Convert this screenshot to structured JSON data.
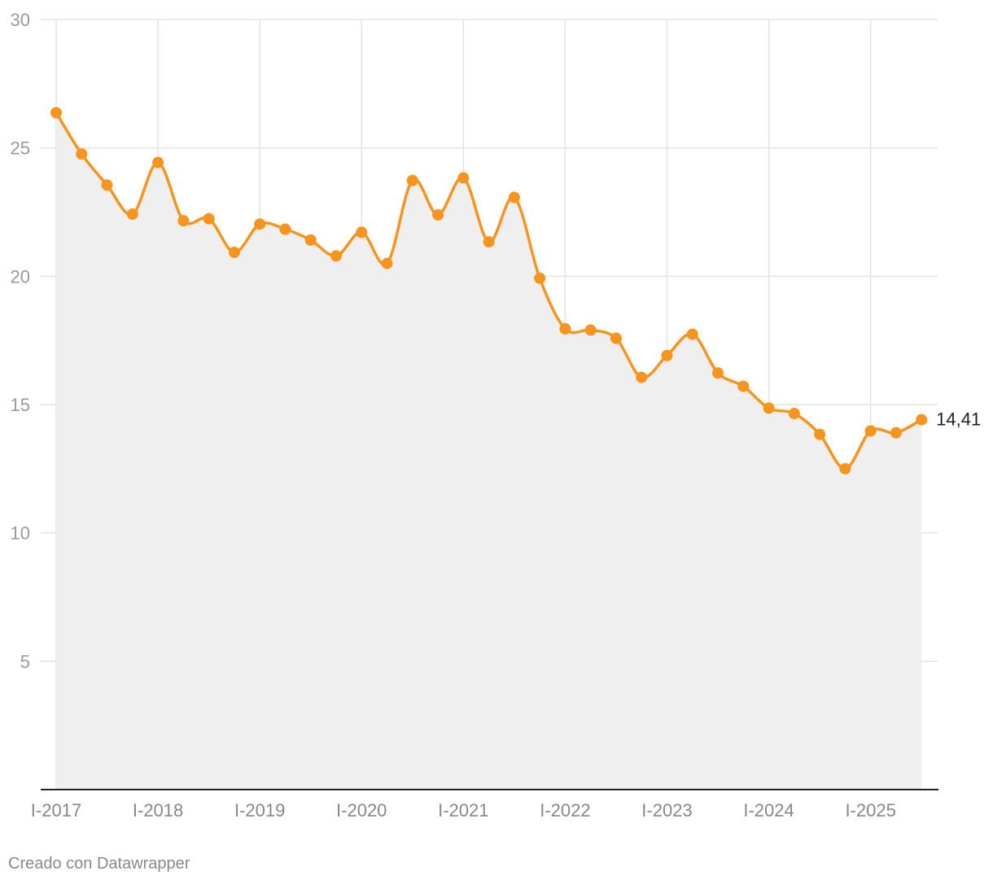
{
  "chart_data": {
    "type": "area",
    "x": [
      "I-2017",
      "II-2017",
      "III-2017",
      "IV-2017",
      "I-2018",
      "II-2018",
      "III-2018",
      "IV-2018",
      "I-2019",
      "II-2019",
      "III-2019",
      "IV-2019",
      "I-2020",
      "II-2020",
      "III-2020",
      "IV-2020",
      "I-2021",
      "II-2021",
      "III-2021",
      "IV-2021",
      "I-2022",
      "II-2022",
      "III-2022",
      "IV-2022",
      "I-2023",
      "II-2023",
      "III-2023",
      "IV-2023",
      "I-2024",
      "II-2024",
      "III-2024",
      "IV-2024",
      "I-2025",
      "II-2025",
      "III-2025"
    ],
    "series": [
      {
        "values": [
          26.37,
          24.76,
          23.55,
          22.42,
          24.43,
          22.16,
          22.24,
          20.93,
          22.03,
          21.83,
          21.41,
          20.79,
          21.71,
          20.5,
          23.73,
          22.39,
          23.83,
          21.34,
          23.07,
          19.92,
          17.95,
          17.9,
          17.58,
          16.06,
          16.91,
          17.74,
          16.23,
          15.71,
          14.86,
          14.65,
          13.84,
          12.5,
          13.97,
          13.9,
          14.41
        ],
        "color": "#f7941d"
      }
    ],
    "x_tick_labels": [
      "I-2017",
      "I-2018",
      "I-2019",
      "I-2020",
      "I-2021",
      "I-2022",
      "I-2023",
      "I-2024",
      "I-2025"
    ],
    "y_tick_labels": [
      "5",
      "10",
      "15",
      "20",
      "25",
      "30"
    ],
    "ylim": [
      0,
      30
    ],
    "grid": true,
    "last_value_label": "14,41",
    "area_fill": "#efefef"
  },
  "footer": {
    "credit": "Creado con Datawrapper"
  }
}
